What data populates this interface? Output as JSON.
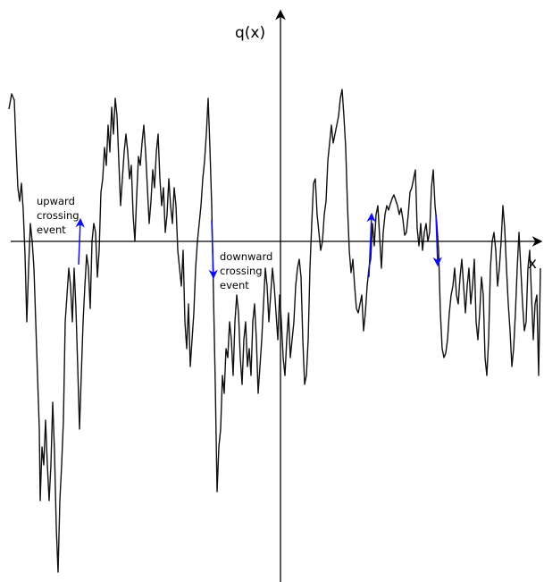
{
  "axes": {
    "x_label": "x",
    "y_label": "q(x)"
  },
  "annotations": {
    "upward": [
      "upward",
      "crossing",
      "event"
    ],
    "downward": [
      "downward",
      "crossing",
      "event"
    ]
  },
  "colors": {
    "signal": "#111111",
    "axes": "#000000",
    "event_arrow": "#1010ee"
  }
}
